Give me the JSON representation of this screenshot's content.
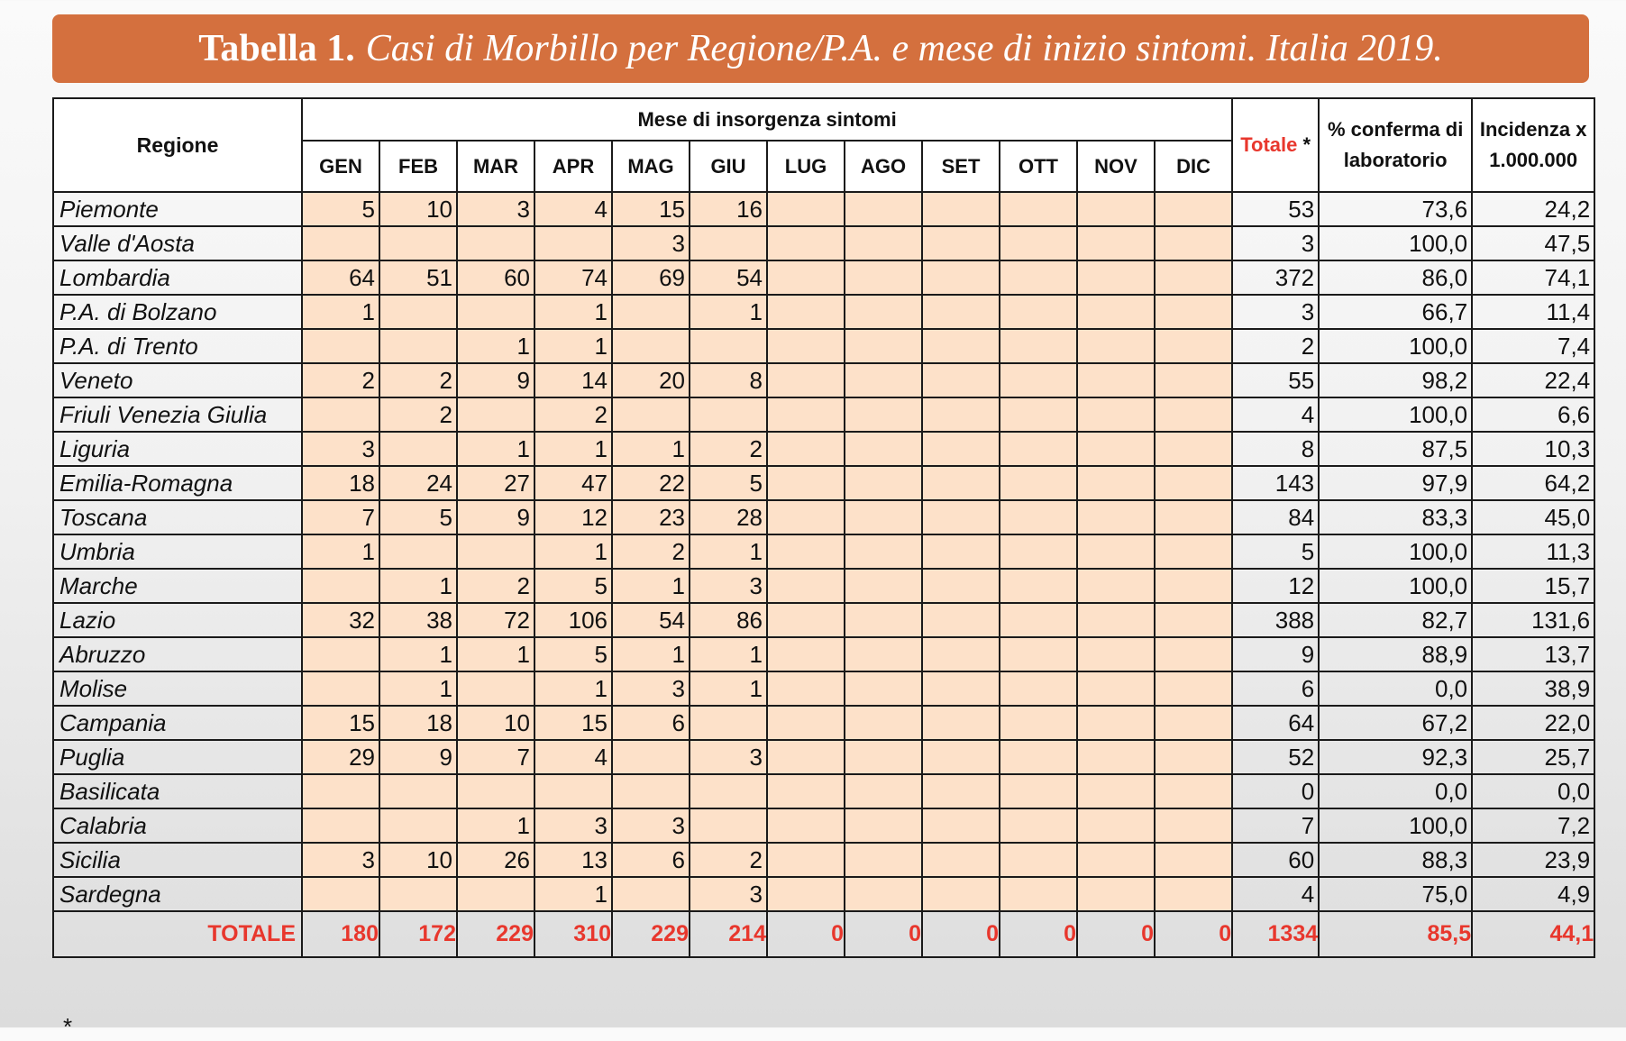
{
  "title": {
    "bold": "Tabella 1.",
    "italic": "Casi di Morbillo per Regione/P.A. e mese di inizio sintomi. Italia 2019."
  },
  "headers": {
    "regione": "Regione",
    "mese_group": "Mese di insorgenza sintomi",
    "months": [
      "GEN",
      "FEB",
      "MAR",
      "APR",
      "MAG",
      "GIU",
      "LUG",
      "AGO",
      "SET",
      "OTT",
      "NOV",
      "DIC"
    ],
    "totale": "Totale",
    "totale_star": "*",
    "pct_line1": "% conferma di",
    "pct_line2": "laboratorio",
    "inc_line1": "Incidenza x",
    "inc_line2": "1.000.000"
  },
  "rows": [
    {
      "name": "Piemonte",
      "months": [
        "5",
        "10",
        "3",
        "4",
        "15",
        "16",
        "",
        "",
        "",
        "",
        "",
        ""
      ],
      "totale": "53",
      "pct": "73,6",
      "inc": "24,2"
    },
    {
      "name": "Valle d'Aosta",
      "months": [
        "",
        "",
        "",
        "",
        "3",
        "",
        "",
        "",
        "",
        "",
        "",
        ""
      ],
      "totale": "3",
      "pct": "100,0",
      "inc": "47,5"
    },
    {
      "name": "Lombardia",
      "months": [
        "64",
        "51",
        "60",
        "74",
        "69",
        "54",
        "",
        "",
        "",
        "",
        "",
        ""
      ],
      "totale": "372",
      "pct": "86,0",
      "inc": "74,1"
    },
    {
      "name": "P.A. di Bolzano",
      "months": [
        "1",
        "",
        "",
        "1",
        "",
        "1",
        "",
        "",
        "",
        "",
        "",
        ""
      ],
      "totale": "3",
      "pct": "66,7",
      "inc": "11,4"
    },
    {
      "name": "P.A. di Trento",
      "months": [
        "",
        "",
        "1",
        "1",
        "",
        "",
        "",
        "",
        "",
        "",
        "",
        ""
      ],
      "totale": "2",
      "pct": "100,0",
      "inc": "7,4"
    },
    {
      "name": "Veneto",
      "months": [
        "2",
        "2",
        "9",
        "14",
        "20",
        "8",
        "",
        "",
        "",
        "",
        "",
        ""
      ],
      "totale": "55",
      "pct": "98,2",
      "inc": "22,4"
    },
    {
      "name": "Friuli Venezia Giulia",
      "months": [
        "",
        "2",
        "",
        "2",
        "",
        "",
        "",
        "",
        "",
        "",
        "",
        ""
      ],
      "totale": "4",
      "pct": "100,0",
      "inc": "6,6"
    },
    {
      "name": "Liguria",
      "months": [
        "3",
        "",
        "1",
        "1",
        "1",
        "2",
        "",
        "",
        "",
        "",
        "",
        ""
      ],
      "totale": "8",
      "pct": "87,5",
      "inc": "10,3"
    },
    {
      "name": "Emilia-Romagna",
      "months": [
        "18",
        "24",
        "27",
        "47",
        "22",
        "5",
        "",
        "",
        "",
        "",
        "",
        ""
      ],
      "totale": "143",
      "pct": "97,9",
      "inc": "64,2"
    },
    {
      "name": "Toscana",
      "months": [
        "7",
        "5",
        "9",
        "12",
        "23",
        "28",
        "",
        "",
        "",
        "",
        "",
        ""
      ],
      "totale": "84",
      "pct": "83,3",
      "inc": "45,0"
    },
    {
      "name": "Umbria",
      "months": [
        "1",
        "",
        "",
        "1",
        "2",
        "1",
        "",
        "",
        "",
        "",
        "",
        ""
      ],
      "totale": "5",
      "pct": "100,0",
      "inc": "11,3"
    },
    {
      "name": "Marche",
      "months": [
        "",
        "1",
        "2",
        "5",
        "1",
        "3",
        "",
        "",
        "",
        "",
        "",
        ""
      ],
      "totale": "12",
      "pct": "100,0",
      "inc": "15,7"
    },
    {
      "name": "Lazio",
      "months": [
        "32",
        "38",
        "72",
        "106",
        "54",
        "86",
        "",
        "",
        "",
        "",
        "",
        ""
      ],
      "totale": "388",
      "pct": "82,7",
      "inc": "131,6"
    },
    {
      "name": "Abruzzo",
      "months": [
        "",
        "1",
        "1",
        "5",
        "1",
        "1",
        "",
        "",
        "",
        "",
        "",
        ""
      ],
      "totale": "9",
      "pct": "88,9",
      "inc": "13,7"
    },
    {
      "name": "Molise",
      "months": [
        "",
        "1",
        "",
        "1",
        "3",
        "1",
        "",
        "",
        "",
        "",
        "",
        ""
      ],
      "totale": "6",
      "pct": "0,0",
      "inc": "38,9"
    },
    {
      "name": "Campania",
      "months": [
        "15",
        "18",
        "10",
        "15",
        "6",
        "",
        "",
        "",
        "",
        "",
        "",
        ""
      ],
      "totale": "64",
      "pct": "67,2",
      "inc": "22,0"
    },
    {
      "name": "Puglia",
      "months": [
        "29",
        "9",
        "7",
        "4",
        "",
        "3",
        "",
        "",
        "",
        "",
        "",
        ""
      ],
      "totale": "52",
      "pct": "92,3",
      "inc": "25,7"
    },
    {
      "name": "Basilicata",
      "months": [
        "",
        "",
        "",
        "",
        "",
        "",
        "",
        "",
        "",
        "",
        "",
        ""
      ],
      "totale": "0",
      "pct": "0,0",
      "inc": "0,0"
    },
    {
      "name": "Calabria",
      "months": [
        "",
        "",
        "1",
        "3",
        "3",
        "",
        "",
        "",
        "",
        "",
        "",
        ""
      ],
      "totale": "7",
      "pct": "100,0",
      "inc": "7,2"
    },
    {
      "name": "Sicilia",
      "months": [
        "3",
        "10",
        "26",
        "13",
        "6",
        "2",
        "",
        "",
        "",
        "",
        "",
        ""
      ],
      "totale": "60",
      "pct": "88,3",
      "inc": "23,9"
    },
    {
      "name": "Sardegna",
      "months": [
        "",
        "",
        "",
        "1",
        "",
        "3",
        "",
        "",
        "",
        "",
        "",
        ""
      ],
      "totale": "4",
      "pct": "75,0",
      "inc": "4,9"
    }
  ],
  "totals": {
    "label": "TOTALE",
    "months": [
      "180",
      "172",
      "229",
      "310",
      "229",
      "214",
      "0",
      "0",
      "0",
      "0",
      "0",
      "0"
    ],
    "totale": "1334",
    "pct": "85,5",
    "inc": "44,1"
  },
  "footnote_mark": "*",
  "colors": {
    "banner": "#d4703e",
    "month_cell_bg": "#fde1c9",
    "accent_red": "#e8372d"
  }
}
